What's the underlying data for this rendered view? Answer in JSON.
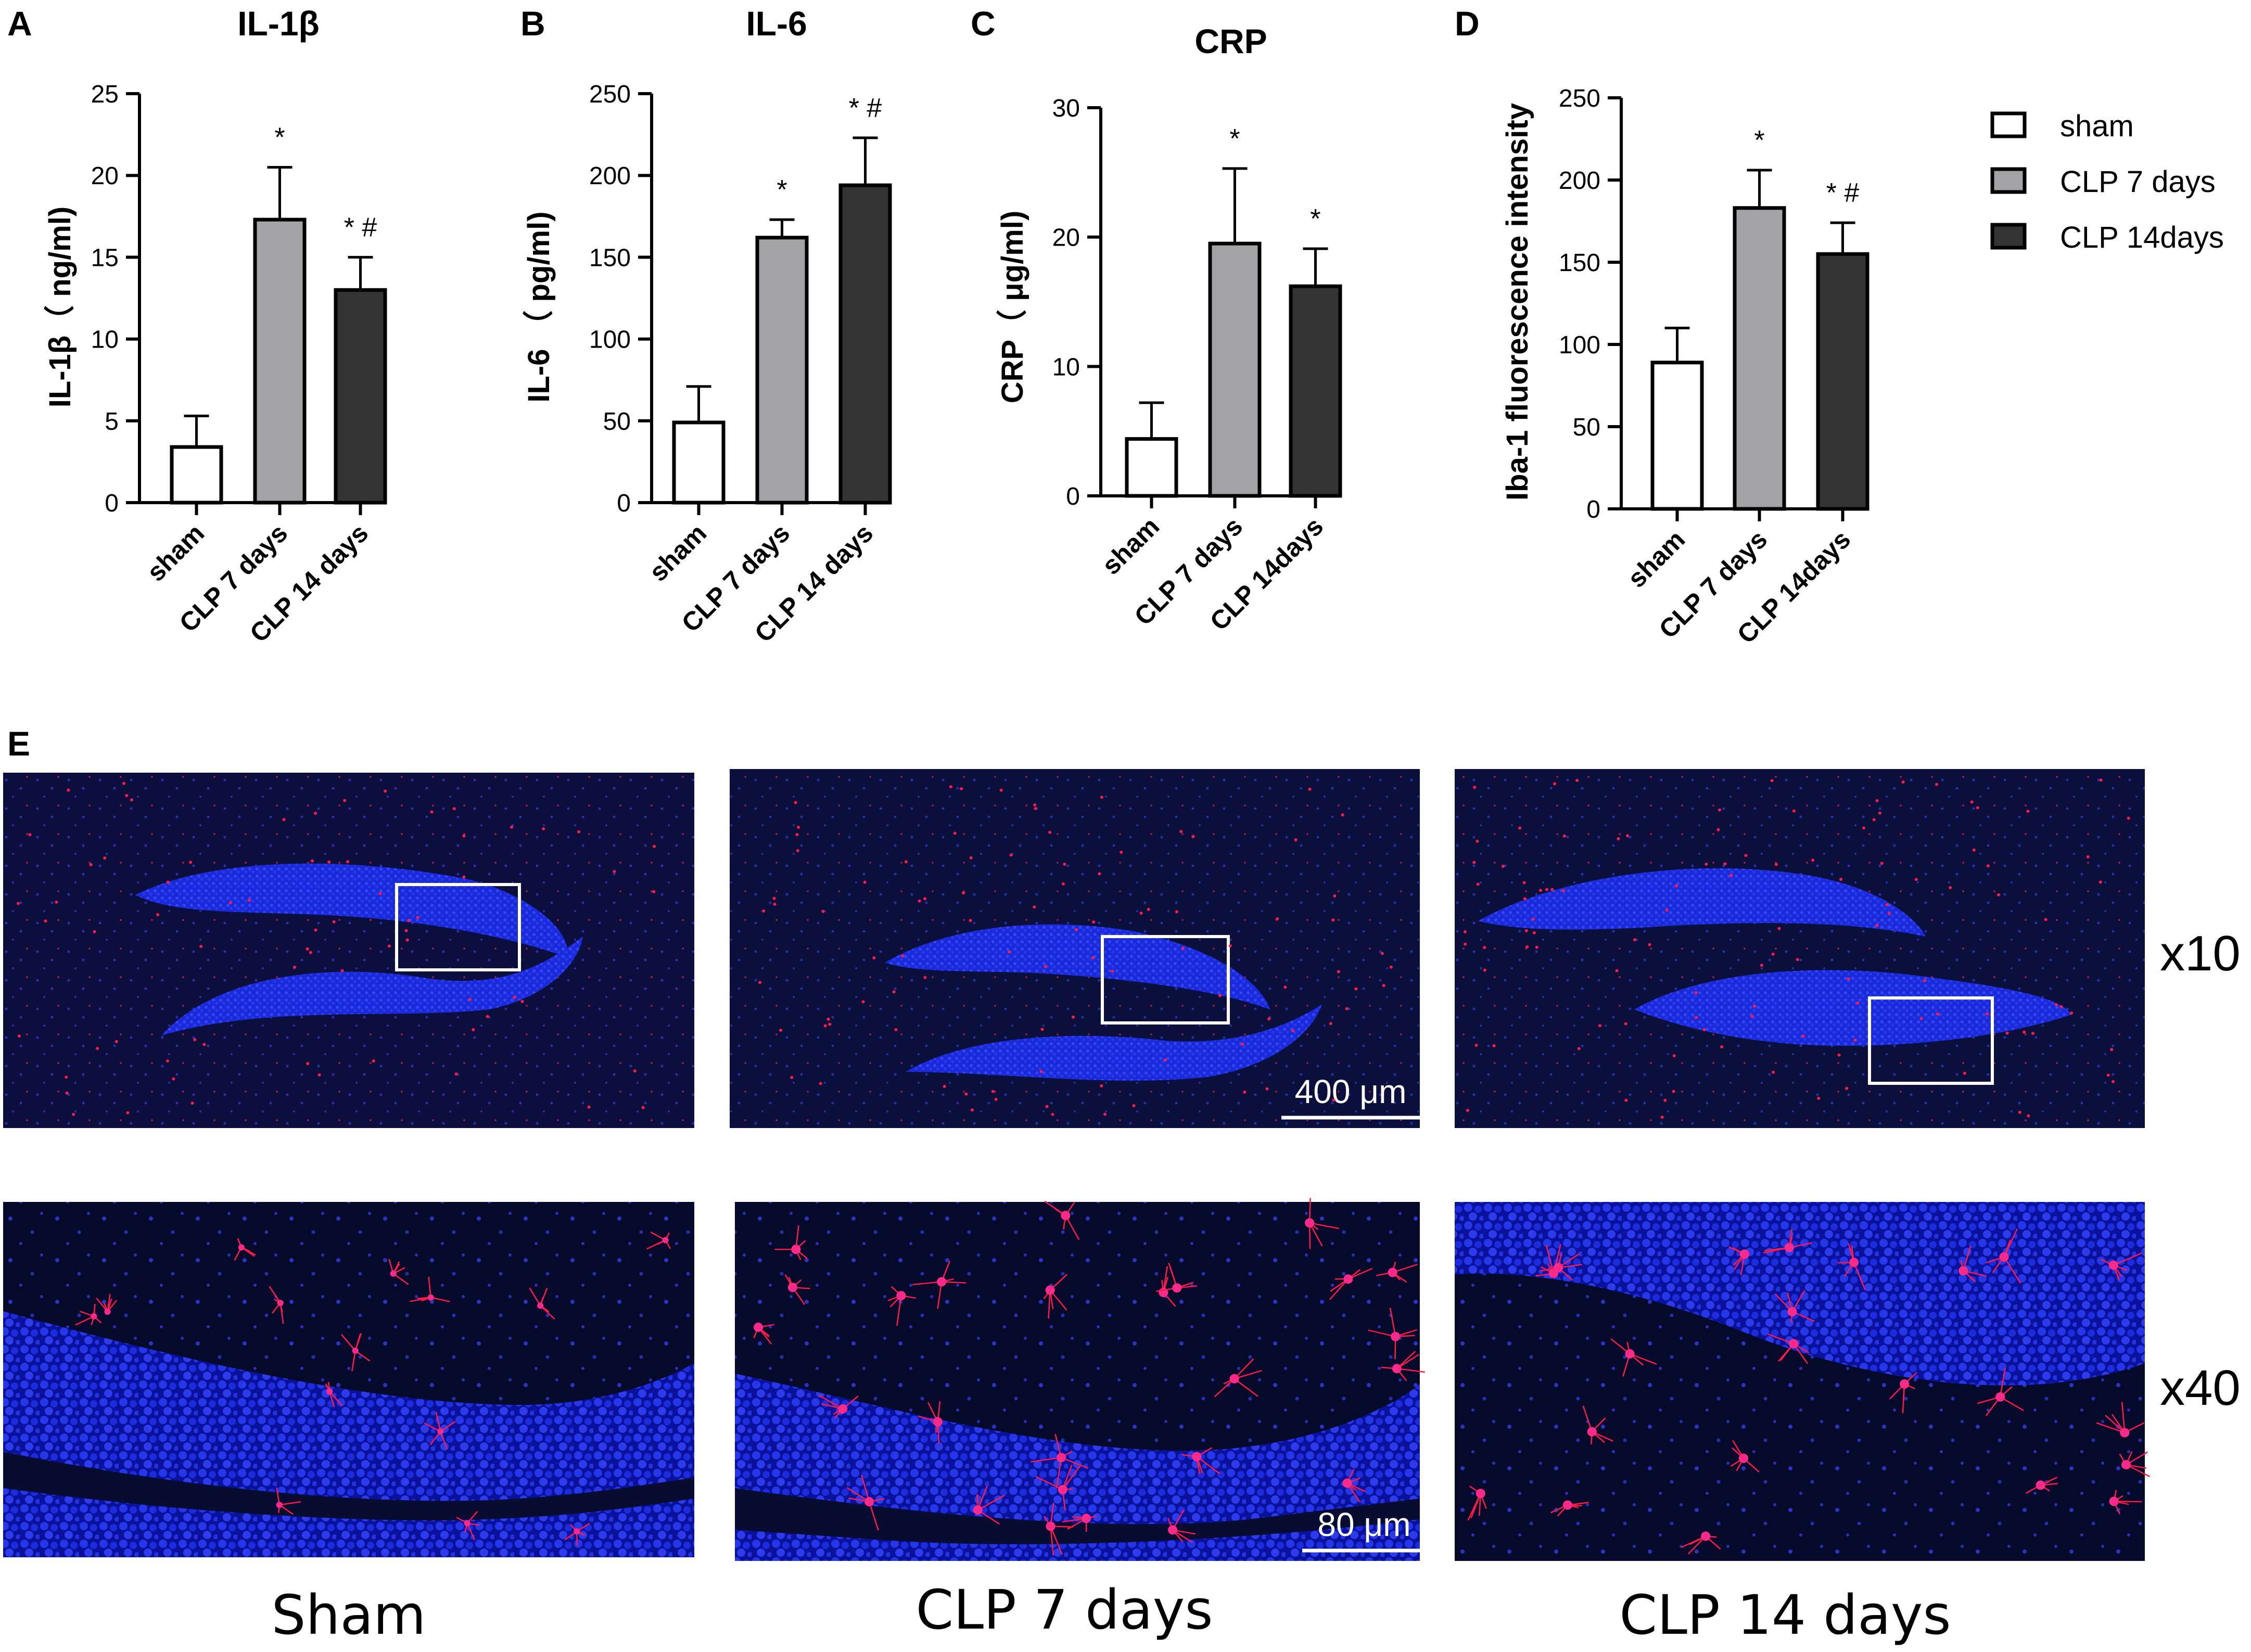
{
  "colors": {
    "sham": "#ffffff",
    "clp7": "#a3a3a6",
    "clp14": "#333333",
    "micrograph_bg": "#050a2a",
    "nuclei": "#2430e6",
    "microglia": "#ff1a4a"
  },
  "chart_data": [
    {
      "panel": "A",
      "type": "bar",
      "title": "IL-1β",
      "ylabel": "IL-1β（ ng/ml)",
      "categories": [
        "sham",
        "CLP 7 days",
        "CLP 14 days"
      ],
      "values": [
        3.4,
        17.3,
        13.0
      ],
      "errors": [
        1.9,
        3.2,
        2.0
      ],
      "significance": [
        "",
        "*",
        "* #"
      ],
      "ylim": [
        0,
        25
      ],
      "yticks": [
        0,
        5,
        10,
        15,
        20,
        25
      ]
    },
    {
      "panel": "B",
      "type": "bar",
      "title": "IL-6",
      "ylabel": "IL-6 （ pg/ml)",
      "categories": [
        "sham",
        "CLP 7 days",
        "CLP 14 days"
      ],
      "values": [
        49,
        162,
        194
      ],
      "errors": [
        22,
        11,
        29
      ],
      "significance": [
        "",
        "*",
        "* #"
      ],
      "ylim": [
        0,
        250
      ],
      "yticks": [
        0,
        50,
        100,
        150,
        200,
        250
      ]
    },
    {
      "panel": "C",
      "type": "bar",
      "title": "CRP",
      "ylabel": "CRP（ μg/ml)",
      "categories": [
        "sham",
        "CLP 7 days",
        "CLP 14days"
      ],
      "values": [
        4.4,
        19.5,
        16.2
      ],
      "errors": [
        2.8,
        5.8,
        2.9
      ],
      "significance": [
        "",
        "*",
        "*"
      ],
      "ylim": [
        0,
        30
      ],
      "yticks": [
        0,
        10,
        20,
        30
      ]
    },
    {
      "panel": "D",
      "type": "bar",
      "title": "",
      "ylabel": "Iba-1 fluorescence intensity",
      "categories": [
        "sham",
        "CLP 7 days",
        "CLP 14days"
      ],
      "values": [
        89,
        183,
        155
      ],
      "errors": [
        21,
        23,
        19
      ],
      "significance": [
        "",
        "*",
        "* #"
      ],
      "ylim": [
        0,
        250
      ],
      "yticks": [
        0,
        50,
        100,
        150,
        200,
        250
      ]
    }
  ],
  "legend": {
    "placement": "top-right",
    "items": [
      {
        "label": "sham",
        "color": "#ffffff"
      },
      {
        "label": "CLP 7 days",
        "color": "#a3a3a6"
      },
      {
        "label": "CLP 14days",
        "color": "#333333"
      }
    ]
  },
  "panel_e": {
    "letter": "E",
    "magnifications": [
      "x10",
      "x40"
    ],
    "groups": [
      "Sham",
      "CLP 7 days",
      "CLP 14 days"
    ],
    "scale_bars": [
      "400 μm",
      "80 μm"
    ]
  }
}
